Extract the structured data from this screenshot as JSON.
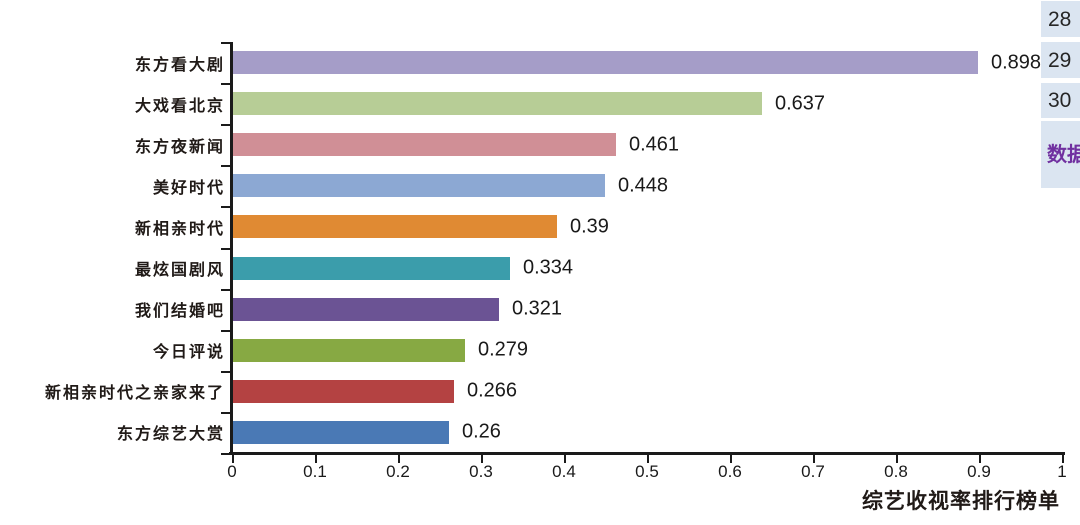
{
  "chart_data": {
    "type": "bar",
    "orientation": "horizontal",
    "title": "综艺收视率排行榜单",
    "xlabel": "综艺收视率排行榜单",
    "ylabel": "",
    "categories": [
      "东方看大剧",
      "大戏看北京",
      "东方夜新闻",
      "美好时代",
      "新相亲时代",
      "最炫国剧风",
      "我们结婚吧",
      "今日评说",
      "新相亲时代之亲家来了",
      "东方综艺大赏"
    ],
    "values": [
      0.898,
      0.637,
      0.461,
      0.448,
      0.39,
      0.334,
      0.321,
      0.279,
      0.266,
      0.26
    ],
    "value_labels": [
      "0.898",
      "0.637",
      "0.461",
      "0.448",
      "0.39",
      "0.334",
      "0.321",
      "0.279",
      "0.266",
      "0.26"
    ],
    "bar_colors": [
      "#a59dc8",
      "#b7cd96",
      "#d08f96",
      "#8ca8d3",
      "#e08a33",
      "#3b9dab",
      "#6b5394",
      "#87a943",
      "#b44242",
      "#4a79b5"
    ],
    "xlim": [
      0,
      1
    ],
    "x_ticks": [
      0,
      0.1,
      0.2,
      0.3,
      0.4,
      0.5,
      0.6,
      0.7,
      0.8,
      0.9,
      1
    ],
    "x_tick_labels": [
      "0",
      "0.1",
      "0.2",
      "0.3",
      "0.4",
      "0.5",
      "0.6",
      "0.7",
      "0.8",
      "0.9",
      "1"
    ],
    "grid": false,
    "legend": null,
    "axis_color": "#1a1a1a"
  },
  "sidebar": {
    "row_numbers": [
      "28",
      "29",
      "30"
    ],
    "label_cell": "数据",
    "cell_bg": "#dbe5f1",
    "label_color": "#7030a0"
  }
}
